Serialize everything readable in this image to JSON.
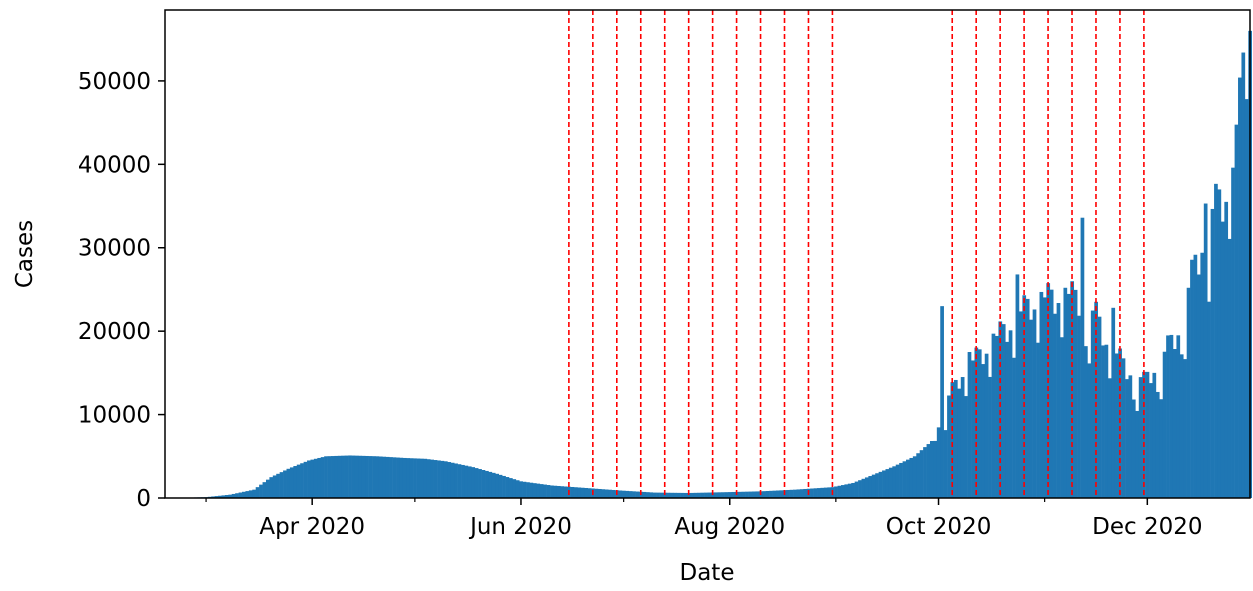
{
  "chart_data": {
    "type": "bar",
    "title": "",
    "xlabel": "Date",
    "ylabel": "Cases",
    "x_range": [
      "2020-02-18",
      "2020-12-31"
    ],
    "ylim": [
      0,
      58500
    ],
    "x_ticks": [
      {
        "date": "2020-04-01",
        "label": "Apr 2020"
      },
      {
        "date": "2020-06-01",
        "label": "Jun 2020"
      },
      {
        "date": "2020-08-01",
        "label": "Aug 2020"
      },
      {
        "date": "2020-10-01",
        "label": "Oct 2020"
      },
      {
        "date": "2020-12-01",
        "label": "Dec 2020"
      }
    ],
    "x_minor_ticks": [
      "2020-03-01",
      "2020-05-01",
      "2020-07-01",
      "2020-09-01",
      "2020-11-01"
    ],
    "y_ticks": [
      0,
      10000,
      20000,
      30000,
      40000,
      50000
    ],
    "bar_color": "#1f77b4",
    "vline_color": "#ff0000",
    "vlines": [
      "2020-06-15",
      "2020-06-22",
      "2020-06-29",
      "2020-07-06",
      "2020-07-13",
      "2020-07-20",
      "2020-07-27",
      "2020-08-03",
      "2020-08-10",
      "2020-08-17",
      "2020-08-24",
      "2020-08-31",
      "2020-10-05",
      "2020-10-12",
      "2020-10-19",
      "2020-10-26",
      "2020-11-02",
      "2020-11-09",
      "2020-11-16",
      "2020-11-23",
      "2020-11-30"
    ],
    "anchors": [
      [
        "2020-02-20",
        0
      ],
      [
        "2020-03-01",
        100
      ],
      [
        "2020-03-08",
        400
      ],
      [
        "2020-03-15",
        1000
      ],
      [
        "2020-03-20",
        2500
      ],
      [
        "2020-03-25",
        3500
      ],
      [
        "2020-03-31",
        4500
      ],
      [
        "2020-04-05",
        5000
      ],
      [
        "2020-04-12",
        5100
      ],
      [
        "2020-04-20",
        5000
      ],
      [
        "2020-04-28",
        4800
      ],
      [
        "2020-05-04",
        4700
      ],
      [
        "2020-05-10",
        4400
      ],
      [
        "2020-05-18",
        3700
      ],
      [
        "2020-05-25",
        2900
      ],
      [
        "2020-06-01",
        2000
      ],
      [
        "2020-06-10",
        1500
      ],
      [
        "2020-06-20",
        1200
      ],
      [
        "2020-06-30",
        900
      ],
      [
        "2020-07-10",
        650
      ],
      [
        "2020-07-20",
        600
      ],
      [
        "2020-07-31",
        700
      ],
      [
        "2020-08-10",
        800
      ],
      [
        "2020-08-20",
        1000
      ],
      [
        "2020-08-31",
        1300
      ],
      [
        "2020-09-06",
        1800
      ],
      [
        "2020-09-12",
        2800
      ],
      [
        "2020-09-18",
        3800
      ],
      [
        "2020-09-24",
        5000
      ],
      [
        "2020-09-30",
        7200
      ],
      [
        "2020-10-03",
        11000
      ],
      [
        "2020-10-08",
        14500
      ],
      [
        "2020-10-13",
        16500
      ],
      [
        "2020-10-18",
        18500
      ],
      [
        "2020-10-23",
        20500
      ],
      [
        "2020-10-28",
        22500
      ],
      [
        "2020-11-02",
        23000
      ],
      [
        "2020-11-06",
        23500
      ],
      [
        "2020-11-11",
        23000
      ],
      [
        "2020-11-16",
        21000
      ],
      [
        "2020-11-20",
        17500
      ],
      [
        "2020-11-25",
        15000
      ],
      [
        "2020-11-30",
        13500
      ],
      [
        "2020-12-05",
        16000
      ],
      [
        "2020-12-10",
        19500
      ],
      [
        "2020-12-15",
        27000
      ],
      [
        "2020-12-20",
        33000
      ],
      [
        "2020-12-24",
        35500
      ],
      [
        "2020-12-28",
        45000
      ],
      [
        "2020-12-31",
        53000
      ]
    ],
    "peaks": [
      [
        "2020-10-02",
        23000
      ],
      [
        "2020-10-10",
        17500
      ],
      [
        "2020-10-17",
        19700
      ],
      [
        "2020-10-24",
        26800
      ],
      [
        "2020-10-31",
        24700
      ],
      [
        "2020-11-07",
        25200
      ],
      [
        "2020-11-12",
        33600
      ],
      [
        "2020-11-21",
        22800
      ],
      [
        "2020-12-18",
        35300
      ],
      [
        "2020-12-26",
        39600
      ],
      [
        "2020-12-29",
        53400
      ],
      [
        "2020-12-31",
        56000
      ]
    ]
  }
}
